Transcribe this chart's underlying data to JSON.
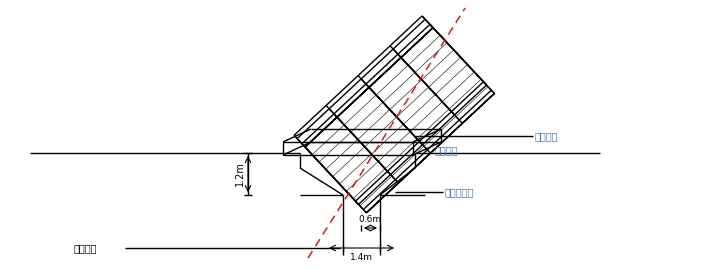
{
  "bg_color": "#ffffff",
  "line_color": "#000000",
  "red_dash_color": "#ff0000",
  "label_color_blue": "#4472c4",
  "figsize": [
    7.11,
    2.7
  ],
  "dpi": 100,
  "labels": {
    "ding_wei": "定位型钉",
    "wei_hu_nei_bian_top": "围护内边",
    "wei_hu_nei_bian_line": "围护内边线",
    "zhong_xin": "中心轴线",
    "dim_06": "0.6m",
    "dim_14": "1.4m",
    "dim_12": "1.2m"
  }
}
